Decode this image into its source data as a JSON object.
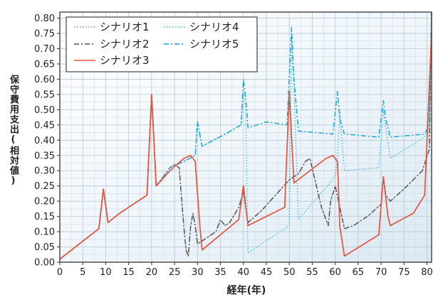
{
  "chart_data": {
    "type": "line",
    "xlabel": "経年(年)",
    "ylabel": "保守費用支出(相対値)",
    "xlim": [
      0,
      81
    ],
    "ylim": [
      0,
      0.82
    ],
    "x_ticks": [
      0,
      5,
      10,
      15,
      20,
      25,
      30,
      35,
      40,
      45,
      50,
      55,
      60,
      65,
      70,
      75,
      80
    ],
    "y_ticks": [
      0.0,
      0.05,
      0.1,
      0.15,
      0.2,
      0.25,
      0.3,
      0.35,
      0.4,
      0.45,
      0.5,
      0.55,
      0.6,
      0.65,
      0.7,
      0.75,
      0.8
    ],
    "grid": true,
    "legend_placement": "top-left",
    "legend": [
      "シナリオ1",
      "シナリオ4",
      "シナリオ2",
      "シナリオ5",
      "シナリオ3"
    ],
    "series": [
      {
        "name": "シナリオ1",
        "color": "#888888",
        "style": "dotted",
        "x": [
          0,
          8.5,
          9.5,
          10.5,
          13,
          15,
          16,
          19,
          20,
          21,
          24,
          25,
          26,
          27,
          27.5,
          28,
          28.5,
          29,
          29.5,
          30,
          31,
          34,
          35,
          36,
          37,
          39,
          40,
          41,
          44,
          47,
          50,
          52,
          53.5,
          54.5,
          57,
          58.5,
          59,
          60,
          62,
          64,
          67,
          70,
          70.5,
          71,
          72,
          75,
          79,
          80.5,
          81
        ],
        "y": [
          0.01,
          0.11,
          0.24,
          0.13,
          0.16,
          0.18,
          0.19,
          0.22,
          0.55,
          0.25,
          0.31,
          0.32,
          0.31,
          0.12,
          0.04,
          0.02,
          0.12,
          0.16,
          0.12,
          0.06,
          0.07,
          0.1,
          0.14,
          0.12,
          0.13,
          0.18,
          0.23,
          0.13,
          0.17,
          0.22,
          0.27,
          0.29,
          0.33,
          0.34,
          0.18,
          0.12,
          0.2,
          0.25,
          0.11,
          0.12,
          0.15,
          0.19,
          0.28,
          0.22,
          0.2,
          0.24,
          0.3,
          0.37,
          0.82
        ]
      },
      {
        "name": "シナリオ4",
        "color": "#45c0e6",
        "style": "dotted",
        "x": [
          0,
          8.5,
          9.5,
          10.5,
          13,
          15,
          16,
          19,
          20,
          21,
          24,
          27,
          29.5,
          30,
          31,
          36,
          39.5,
          40,
          40.5,
          41,
          50,
          50.5,
          51,
          52,
          60,
          60.5,
          61,
          62,
          69.5,
          70.5,
          71.5,
          72,
          79.5,
          80.5,
          81
        ],
        "y": [
          0.01,
          0.11,
          0.24,
          0.13,
          0.16,
          0.18,
          0.19,
          0.22,
          0.55,
          0.25,
          0.31,
          0.33,
          0.35,
          0.46,
          0.38,
          0.42,
          0.45,
          0.56,
          0.5,
          0.03,
          0.12,
          0.73,
          0.58,
          0.14,
          0.28,
          0.35,
          0.49,
          0.3,
          0.31,
          0.5,
          0.39,
          0.34,
          0.41,
          0.45,
          0.82
        ]
      },
      {
        "name": "シナリオ2",
        "color": "#555555",
        "style": "dashdot",
        "x": [
          0,
          8.5,
          9.5,
          10.5,
          13,
          15,
          16,
          19,
          20,
          21,
          24,
          25,
          26,
          27,
          27.5,
          28,
          28.5,
          29,
          29.5,
          30,
          31,
          34,
          35,
          36,
          37,
          39,
          40,
          41,
          44,
          47,
          50,
          52,
          53.5,
          54.5,
          57,
          58.5,
          59,
          60,
          62,
          64,
          67,
          70,
          70.5,
          71,
          72,
          75,
          79,
          80.5,
          81
        ],
        "y": [
          0.01,
          0.11,
          0.24,
          0.13,
          0.16,
          0.18,
          0.19,
          0.22,
          0.55,
          0.25,
          0.31,
          0.32,
          0.31,
          0.12,
          0.04,
          0.02,
          0.12,
          0.16,
          0.12,
          0.06,
          0.07,
          0.1,
          0.14,
          0.12,
          0.13,
          0.18,
          0.23,
          0.13,
          0.17,
          0.22,
          0.27,
          0.29,
          0.33,
          0.34,
          0.18,
          0.12,
          0.2,
          0.25,
          0.11,
          0.12,
          0.15,
          0.19,
          0.28,
          0.22,
          0.2,
          0.24,
          0.3,
          0.37,
          0.82
        ]
      },
      {
        "name": "シナリオ5",
        "color": "#1aa6d1",
        "style": "dashdot",
        "x": [
          0,
          8.5,
          9.5,
          10.5,
          13,
          15,
          16,
          19,
          20,
          21,
          24,
          27,
          29.5,
          30,
          31,
          36,
          39.5,
          40,
          40.5,
          41,
          45,
          49.5,
          50.5,
          51,
          52,
          59.5,
          60.5,
          61,
          62,
          69.5,
          70.5,
          71,
          72,
          79.5,
          80.5,
          81
        ],
        "y": [
          0.01,
          0.11,
          0.24,
          0.13,
          0.16,
          0.18,
          0.19,
          0.22,
          0.55,
          0.25,
          0.31,
          0.33,
          0.35,
          0.46,
          0.38,
          0.42,
          0.45,
          0.6,
          0.54,
          0.44,
          0.46,
          0.45,
          0.77,
          0.6,
          0.43,
          0.42,
          0.56,
          0.47,
          0.42,
          0.41,
          0.53,
          0.47,
          0.41,
          0.42,
          0.45,
          0.82
        ]
      },
      {
        "name": "シナリオ3",
        "color": "#e5533d",
        "style": "solid",
        "x": [
          0,
          8.5,
          9.5,
          10.5,
          13,
          15,
          16,
          19,
          20,
          21,
          24,
          27,
          28.5,
          29.5,
          30.5,
          31,
          39,
          40,
          41,
          49,
          50,
          51,
          58,
          59.5,
          60.5,
          61,
          62,
          69.5,
          70.5,
          71.5,
          72,
          77,
          79.5,
          81
        ],
        "y": [
          0.01,
          0.11,
          0.24,
          0.13,
          0.16,
          0.18,
          0.19,
          0.22,
          0.55,
          0.25,
          0.3,
          0.34,
          0.35,
          0.33,
          0.12,
          0.04,
          0.14,
          0.25,
          0.12,
          0.18,
          0.56,
          0.26,
          0.34,
          0.35,
          0.33,
          0.12,
          0.02,
          0.09,
          0.28,
          0.15,
          0.12,
          0.16,
          0.22,
          0.75
        ]
      }
    ]
  }
}
